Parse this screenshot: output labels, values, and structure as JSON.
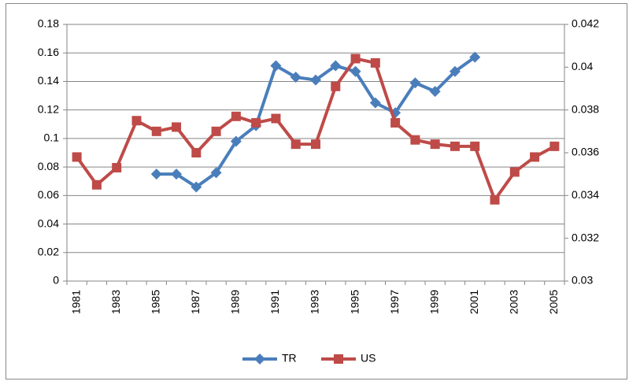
{
  "chart_data": {
    "type": "line",
    "categories": [
      1981,
      null,
      1983,
      null,
      1985,
      null,
      1987,
      null,
      1989,
      null,
      1991,
      null,
      1993,
      null,
      1995,
      null,
      1997,
      null,
      1999,
      null,
      2001,
      null,
      2003,
      null,
      2005
    ],
    "series": [
      {
        "name": "TR",
        "color": "#4a7ebb",
        "marker": "diamond",
        "axis": "y",
        "values": [
          null,
          null,
          null,
          null,
          0.075,
          0.075,
          0.066,
          0.076,
          0.098,
          0.109,
          0.151,
          0.143,
          0.141,
          0.151,
          0.147,
          0.125,
          0.118,
          0.139,
          0.133,
          0.147,
          0.157,
          null,
          null,
          null,
          null
        ]
      },
      {
        "name": "US",
        "color": "#be4b48",
        "marker": "square",
        "axis": "y2",
        "values": [
          0.0358,
          0.0345,
          0.0353,
          0.0375,
          0.037,
          0.0372,
          0.036,
          0.037,
          0.0377,
          0.0374,
          0.0376,
          0.0364,
          0.0364,
          0.0391,
          0.0404,
          0.0402,
          0.0374,
          0.0366,
          0.0364,
          0.0363,
          0.0363,
          0.0338,
          0.0351,
          0.0358,
          0.0363
        ]
      }
    ],
    "ylim": [
      0,
      0.18
    ],
    "yticks": [
      0,
      0.02,
      0.04,
      0.06,
      0.08,
      0.1,
      0.12,
      0.14,
      0.16,
      0.18
    ],
    "y2lim": [
      0.03,
      0.042
    ],
    "y2ticks": [
      0.03,
      0.032,
      0.034,
      0.036,
      0.038,
      0.04,
      0.042
    ],
    "grid": true,
    "legend": "bottom"
  }
}
